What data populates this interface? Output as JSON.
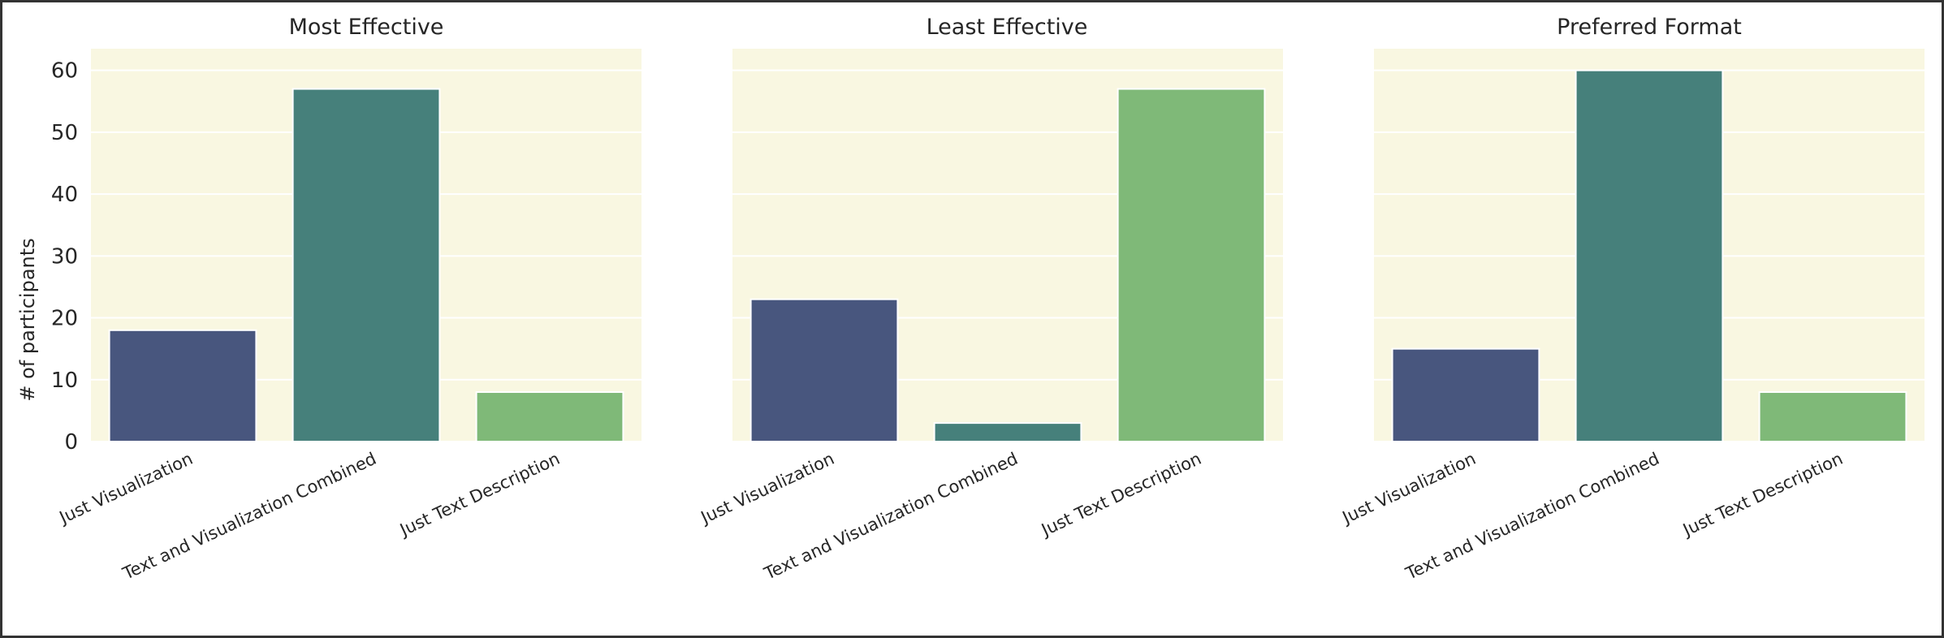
{
  "chart_data": [
    {
      "type": "bar",
      "title": "Most Effective",
      "ylabel": "# of participants",
      "categories": [
        "Just Visualization",
        "Text and Visualization Combined",
        "Just Text Description"
      ],
      "values": [
        18,
        57,
        8
      ],
      "colors": [
        "#48567e",
        "#46807b",
        "#7fb978"
      ],
      "ylim": [
        0,
        63.5
      ],
      "yticks": [
        "0",
        "10",
        "20",
        "30",
        "40",
        "50",
        "60"
      ],
      "grid": true
    },
    {
      "type": "bar",
      "title": "Least Effective",
      "categories": [
        "Just Visualization",
        "Text and Visualization Combined",
        "Just Text Description"
      ],
      "values": [
        23,
        3,
        57
      ],
      "colors": [
        "#48567e",
        "#46807b",
        "#7fb978"
      ],
      "ylim": [
        0,
        63.5
      ],
      "grid": true
    },
    {
      "type": "bar",
      "title": "Preferred Format",
      "categories": [
        "Just Visualization",
        "Text and Visualization Combined",
        "Just Text Description"
      ],
      "values": [
        15,
        60,
        8
      ],
      "colors": [
        "#48567e",
        "#46807b",
        "#7fb978"
      ],
      "ylim": [
        0,
        63.5
      ],
      "grid": true
    }
  ]
}
